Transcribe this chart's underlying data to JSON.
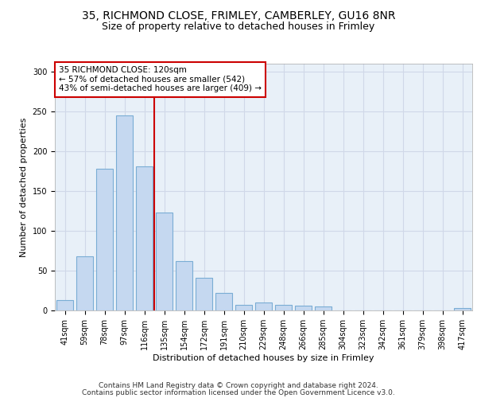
{
  "title_line1": "35, RICHMOND CLOSE, FRIMLEY, CAMBERLEY, GU16 8NR",
  "title_line2": "Size of property relative to detached houses in Frimley",
  "xlabel": "Distribution of detached houses by size in Frimley",
  "ylabel": "Number of detached properties",
  "footer_line1": "Contains HM Land Registry data © Crown copyright and database right 2024.",
  "footer_line2": "Contains public sector information licensed under the Open Government Licence v3.0.",
  "categories": [
    "41sqm",
    "59sqm",
    "78sqm",
    "97sqm",
    "116sqm",
    "135sqm",
    "154sqm",
    "172sqm",
    "191sqm",
    "210sqm",
    "229sqm",
    "248sqm",
    "266sqm",
    "285sqm",
    "304sqm",
    "323sqm",
    "342sqm",
    "361sqm",
    "379sqm",
    "398sqm",
    "417sqm"
  ],
  "values": [
    13,
    68,
    178,
    245,
    181,
    123,
    62,
    41,
    22,
    7,
    10,
    7,
    6,
    5,
    0,
    0,
    0,
    0,
    0,
    0,
    3
  ],
  "bar_color": "#c5d8f0",
  "bar_edge_color": "#7aadd4",
  "bar_edge_width": 0.8,
  "ref_line_label": "116sqm",
  "ref_line_color": "#cc0000",
  "annotation_text": "35 RICHMOND CLOSE: 120sqm\n← 57% of detached houses are smaller (542)\n43% of semi-detached houses are larger (409) →",
  "annotation_box_color": "#ffffff",
  "annotation_box_edge": "#cc0000",
  "ylim": [
    0,
    310
  ],
  "yticks": [
    0,
    50,
    100,
    150,
    200,
    250,
    300
  ],
  "grid_color": "#d0d8e8",
  "bg_color": "#e8f0f8",
  "title_fontsize": 10,
  "subtitle_fontsize": 9,
  "axis_label_fontsize": 8,
  "tick_fontsize": 7,
  "footer_fontsize": 6.5,
  "annotation_fontsize": 7.5
}
